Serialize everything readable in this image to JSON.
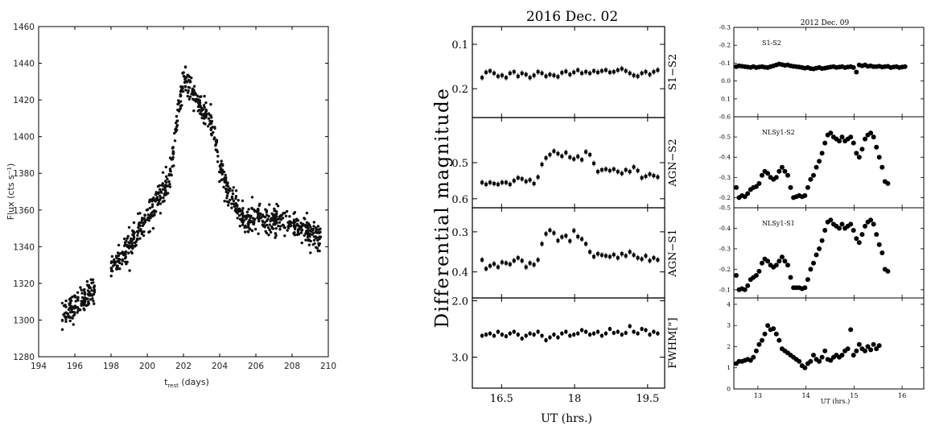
{
  "chart_data": [
    {
      "id": "left",
      "type": "scatter",
      "title": "",
      "xlabel_main": "t",
      "xlabel_sub": "rest",
      "xlabel_rest": " (days)",
      "ylabel": "Flux (cts s⁻¹)",
      "xlim": [
        194,
        210
      ],
      "ylim": [
        1280,
        1460
      ],
      "xticks": [
        194,
        196,
        198,
        200,
        202,
        204,
        206,
        208,
        210
      ],
      "yticks": [
        1280,
        1300,
        1320,
        1340,
        1360,
        1380,
        1400,
        1420,
        1440,
        1460
      ],
      "color": "#111111",
      "segments": [
        {
          "x0": 195.3,
          "x1": 197.1,
          "y0": 1301,
          "y1": 1318,
          "scatter": 7
        },
        {
          "x0": 198.0,
          "x1": 199.0,
          "y0": 1329,
          "y1": 1340,
          "scatter": 6
        },
        {
          "x0": 199.0,
          "x1": 201.2,
          "y0": 1340,
          "y1": 1375,
          "scatter": 7
        },
        {
          "x0": 201.2,
          "x1": 202.0,
          "y0": 1375,
          "y1": 1432,
          "scatter": 7
        },
        {
          "x0": 202.0,
          "x1": 202.6,
          "y0": 1432,
          "y1": 1422,
          "scatter": 6
        },
        {
          "x0": 202.6,
          "x1": 203.4,
          "y0": 1422,
          "y1": 1410,
          "scatter": 8
        },
        {
          "x0": 203.4,
          "x1": 204.4,
          "y0": 1410,
          "y1": 1370,
          "scatter": 7
        },
        {
          "x0": 204.4,
          "x1": 205.4,
          "y0": 1370,
          "y1": 1355,
          "scatter": 6
        },
        {
          "x0": 205.4,
          "x1": 207.6,
          "y0": 1355,
          "y1": 1354,
          "scatter": 7
        },
        {
          "x0": 207.6,
          "x1": 209.6,
          "y0": 1354,
          "y1": 1345,
          "scatter": 7
        }
      ]
    },
    {
      "id": "middle",
      "type": "scatter",
      "title": "2016 Dec. 02",
      "xlabel": "UT (hrs.)",
      "ylabel": "Differential magnitude",
      "xlim": [
        15.9,
        19.85
      ],
      "xticks": [
        16.5,
        18,
        19.5
      ],
      "xticklabels": [
        "16.5",
        "18",
        "19.5"
      ],
      "x_start": 16.1,
      "x_step": 0.082,
      "panels": [
        {
          "label": "S1−S2",
          "ylim": [
            0.06,
            0.265
          ],
          "yticks": [
            0.1,
            0.2
          ],
          "yticklabels": [
            "0.1",
            "0.2"
          ],
          "inverted": true,
          "values": [
            0.175,
            0.163,
            0.16,
            0.165,
            0.172,
            0.17,
            0.175,
            0.165,
            0.162,
            0.172,
            0.165,
            0.168,
            0.175,
            0.17,
            0.162,
            0.165,
            0.172,
            0.168,
            0.17,
            0.173,
            0.164,
            0.161,
            0.168,
            0.163,
            0.158,
            0.165,
            0.162,
            0.165,
            0.16,
            0.163,
            0.16,
            0.158,
            0.163,
            0.162,
            0.158,
            0.155,
            0.16,
            0.165,
            0.17,
            0.172,
            0.165,
            0.162,
            0.168,
            0.162,
            0.158
          ]
        },
        {
          "label": "AGN−S2",
          "ylim": [
            0.375,
            0.625
          ],
          "yticks": [
            0.5,
            0.6
          ],
          "yticklabels": [
            "0.5",
            "0.6"
          ],
          "inverted": true,
          "values": [
            0.555,
            0.56,
            0.555,
            0.558,
            0.56,
            0.555,
            0.555,
            0.56,
            0.55,
            0.542,
            0.545,
            0.552,
            0.548,
            0.558,
            0.54,
            0.505,
            0.487,
            0.478,
            0.468,
            0.475,
            0.482,
            0.472,
            0.485,
            0.49,
            0.483,
            0.492,
            0.47,
            0.478,
            0.502,
            0.525,
            0.52,
            0.518,
            0.522,
            0.518,
            0.525,
            0.53,
            0.52,
            0.525,
            0.512,
            0.522,
            0.542,
            0.538,
            0.532,
            0.536,
            0.54
          ]
        },
        {
          "label": "AGN−S1",
          "ylim": [
            0.24,
            0.465
          ],
          "yticks": [
            0.3,
            0.4
          ],
          "yticklabels": [
            "0.3",
            "0.4"
          ],
          "inverted": true,
          "values": [
            0.37,
            0.392,
            0.385,
            0.38,
            0.388,
            0.376,
            0.378,
            0.381,
            0.372,
            0.365,
            0.372,
            0.388,
            0.378,
            0.382,
            0.37,
            0.33,
            0.305,
            0.296,
            0.303,
            0.322,
            0.313,
            0.31,
            0.323,
            0.297,
            0.312,
            0.318,
            0.33,
            0.35,
            0.362,
            0.355,
            0.358,
            0.36,
            0.362,
            0.357,
            0.365,
            0.355,
            0.36,
            0.35,
            0.358,
            0.365,
            0.368,
            0.36,
            0.372,
            0.365,
            0.37
          ]
        },
        {
          "label": "FWHM[\"]",
          "ylim": [
            1.95,
            3.55
          ],
          "yticks": [
            2.0,
            3.0
          ],
          "yticklabels": [
            "2.0",
            "3.0"
          ],
          "inverted": true,
          "values": [
            2.62,
            2.6,
            2.58,
            2.62,
            2.55,
            2.6,
            2.63,
            2.58,
            2.55,
            2.6,
            2.67,
            2.62,
            2.58,
            2.6,
            2.55,
            2.62,
            2.7,
            2.65,
            2.6,
            2.65,
            2.58,
            2.55,
            2.62,
            2.6,
            2.58,
            2.52,
            2.55,
            2.6,
            2.58,
            2.55,
            2.62,
            2.58,
            2.5,
            2.57,
            2.55,
            2.6,
            2.57,
            2.45,
            2.55,
            2.58,
            2.5,
            2.52,
            2.6,
            2.55,
            2.58
          ]
        }
      ]
    },
    {
      "id": "right",
      "type": "scatter",
      "title": "2012 Dec. 09",
      "xlabel": "UT (hrs.)",
      "ylabel": "",
      "xlim": [
        12.5,
        16.45
      ],
      "xticks": [
        13,
        14,
        15,
        16
      ],
      "xticklabels": [
        "13",
        "14",
        "15",
        "16"
      ],
      "x_start": 12.55,
      "x_step": 0.0595,
      "panels": [
        {
          "label": "S1-S2",
          "ylim": [
            -0.3,
            0.2
          ],
          "yticks": [
            -0.3,
            -0.2,
            -0.1,
            0.0,
            0.1
          ],
          "yticklabels": [
            "-0.3",
            "-0.2",
            "-0.1",
            "0.0",
            "0.1"
          ],
          "inverted": false,
          "values": [
            -0.08,
            -0.085,
            -0.083,
            -0.08,
            -0.078,
            -0.076,
            -0.08,
            -0.075,
            -0.078,
            -0.08,
            -0.077,
            -0.075,
            -0.08,
            -0.085,
            -0.09,
            -0.095,
            -0.092,
            -0.088,
            -0.09,
            -0.085,
            -0.082,
            -0.08,
            -0.078,
            -0.075,
            -0.072,
            -0.075,
            -0.07,
            -0.068,
            -0.072,
            -0.075,
            -0.07,
            -0.072,
            -0.075,
            -0.078,
            -0.08,
            -0.076,
            -0.078,
            -0.08,
            -0.075,
            -0.078,
            -0.08,
            -0.075,
            -0.05,
            -0.09,
            -0.085,
            -0.09,
            -0.082,
            -0.085,
            -0.08,
            -0.08,
            -0.083,
            -0.078,
            -0.08,
            -0.082,
            -0.075,
            -0.078,
            -0.08,
            -0.075,
            -0.078,
            -0.08
          ]
        },
        {
          "label": "NLSy1-S2",
          "ylim": [
            -0.6,
            -0.15
          ],
          "yticks": [
            -0.6,
            -0.5,
            -0.4,
            -0.3,
            -0.2
          ],
          "yticklabels": [
            "-0.6",
            "-0.5",
            "-0.4",
            "-0.3",
            "-0.2"
          ],
          "inverted": false,
          "values": [
            -0.25,
            -0.2,
            -0.21,
            -0.205,
            -0.22,
            -0.24,
            -0.25,
            -0.255,
            -0.27,
            -0.31,
            -0.33,
            -0.32,
            -0.3,
            -0.29,
            -0.3,
            -0.33,
            -0.35,
            -0.33,
            -0.31,
            -0.25,
            -0.2,
            -0.205,
            -0.21,
            -0.205,
            -0.21,
            -0.25,
            -0.29,
            -0.31,
            -0.35,
            -0.38,
            -0.42,
            -0.47,
            -0.51,
            -0.52,
            -0.5,
            -0.49,
            -0.48,
            -0.5,
            -0.48,
            -0.49,
            -0.5,
            -0.47,
            -0.42,
            -0.4,
            -0.44,
            -0.49,
            -0.51,
            -0.52,
            -0.5,
            -0.45,
            -0.4,
            -0.35,
            -0.28,
            -0.27
          ]
        },
        {
          "label": "NLSy1-S1",
          "ylim": [
            -0.5,
            -0.06
          ],
          "yticks": [
            -0.5,
            -0.4,
            -0.3,
            -0.2,
            -0.1
          ],
          "yticklabels": [
            "-0.5",
            "-0.4",
            "-0.3",
            "-0.2",
            "-0.1"
          ],
          "inverted": false,
          "values": [
            -0.17,
            -0.1,
            -0.105,
            -0.1,
            -0.12,
            -0.15,
            -0.16,
            -0.17,
            -0.19,
            -0.23,
            -0.25,
            -0.24,
            -0.22,
            -0.21,
            -0.22,
            -0.24,
            -0.26,
            -0.24,
            -0.22,
            -0.16,
            -0.11,
            -0.11,
            -0.11,
            -0.105,
            -0.11,
            -0.15,
            -0.2,
            -0.23,
            -0.27,
            -0.3,
            -0.34,
            -0.39,
            -0.43,
            -0.44,
            -0.42,
            -0.41,
            -0.4,
            -0.42,
            -0.4,
            -0.41,
            -0.42,
            -0.39,
            -0.35,
            -0.33,
            -0.37,
            -0.41,
            -0.43,
            -0.44,
            -0.42,
            -0.37,
            -0.32,
            -0.28,
            -0.2,
            -0.19
          ]
        },
        {
          "label": "",
          "ylim": [
            0,
            4.3
          ],
          "yticks": [
            0,
            1,
            2,
            3,
            4
          ],
          "yticklabels": [
            "0",
            "1",
            "2",
            "3",
            "4"
          ],
          "inverted": false,
          "values": [
            1.2,
            1.3,
            1.3,
            1.35,
            1.4,
            1.35,
            1.5,
            1.8,
            2.1,
            2.3,
            2.6,
            3.0,
            2.8,
            2.85,
            2.6,
            2.3,
            1.9,
            1.8,
            1.7,
            1.6,
            1.5,
            1.4,
            1.3,
            1.1,
            1.0,
            1.2,
            1.3,
            1.6,
            1.4,
            1.3,
            1.5,
            1.8,
            1.4,
            1.35,
            1.5,
            1.6,
            1.5,
            1.6,
            1.8,
            1.9,
            2.8,
            1.6,
            1.8,
            2.1,
            1.9,
            1.8,
            2.0,
            1.85,
            2.1,
            1.9,
            2.05
          ]
        }
      ]
    }
  ]
}
